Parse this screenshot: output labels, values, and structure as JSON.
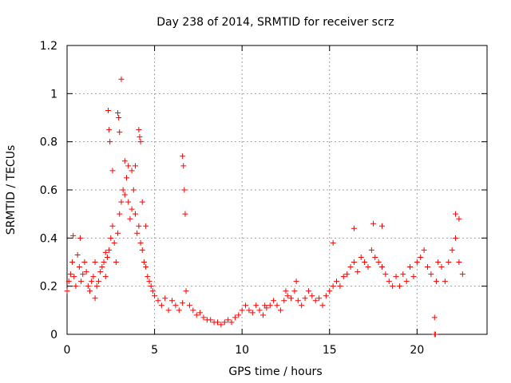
{
  "chart_data": {
    "type": "scatter",
    "title": "Day 238 of 2014, SRMTID for receiver scrz",
    "xlabel": "GPS time / hours",
    "ylabel": "SRMTID / TECUs",
    "xlim": [
      0,
      24
    ],
    "ylim": [
      0,
      1.2
    ],
    "x_ticks": [
      0,
      5,
      10,
      15,
      20
    ],
    "x_tick_labels": [
      "0",
      "5",
      "10",
      "15",
      "20"
    ],
    "y_ticks": [
      0,
      0.2,
      0.4,
      0.6,
      0.8,
      1.0,
      1.2
    ],
    "y_tick_labels": [
      "0",
      "0.2",
      "0.4",
      "0.6",
      "0.8",
      "1",
      "1.2"
    ],
    "grid": true,
    "marker": "plus",
    "series": [
      {
        "name": "SRMTID",
        "color": "#ff0000",
        "x": [
          0.0,
          0.1,
          0.2,
          0.3,
          0.4,
          0.5,
          0.6,
          0.7,
          0.8,
          0.9,
          1.0,
          1.1,
          1.2,
          1.3,
          1.4,
          1.5,
          1.6,
          1.7,
          1.8,
          1.9,
          2.0,
          2.1,
          2.2,
          2.3,
          2.4,
          2.5,
          2.6,
          2.7,
          2.8,
          2.9,
          3.0,
          3.1,
          3.2,
          3.3,
          3.4,
          3.5,
          3.6,
          3.7,
          3.8,
          3.9,
          4.0,
          4.1,
          4.2,
          4.3,
          4.4,
          4.5,
          4.6,
          4.7,
          4.8,
          4.9,
          5.0,
          5.2,
          5.4,
          5.6,
          5.8,
          6.0,
          6.2,
          6.4,
          6.6,
          6.8,
          7.0,
          7.2,
          7.4,
          7.6,
          7.8,
          8.0,
          8.2,
          8.4,
          8.6,
          8.8,
          9.0,
          9.2,
          9.4,
          9.6,
          9.8,
          10.0,
          10.2,
          10.4,
          10.6,
          10.8,
          11.0,
          11.2,
          11.4,
          11.6,
          11.8,
          12.0,
          12.2,
          12.4,
          12.6,
          12.8,
          13.0,
          13.2,
          13.4,
          13.6,
          13.8,
          14.0,
          14.2,
          14.4,
          14.6,
          14.8,
          15.0,
          15.2,
          15.4,
          15.6,
          15.8,
          16.0,
          16.2,
          16.4,
          16.6,
          16.8,
          17.0,
          17.2,
          17.4,
          17.6,
          17.8,
          18.0,
          18.2,
          18.4,
          18.6,
          18.8,
          19.0,
          19.2,
          19.4,
          19.6,
          19.8,
          20.0,
          20.2,
          20.4,
          20.6,
          20.8,
          21.0,
          21.2,
          21.4,
          21.6,
          21.8,
          22.0,
          22.2,
          22.4,
          22.6,
          2.35,
          2.4,
          2.45,
          2.9,
          2.95,
          3.0,
          4.1,
          4.15,
          4.2,
          6.6,
          6.65,
          6.7,
          6.75,
          2.6,
          3.1,
          3.3,
          3.5,
          3.7,
          3.9,
          4.3,
          4.5,
          0.35,
          0.75,
          1.6,
          2.2,
          21.0,
          21.05,
          21.1,
          22.2,
          22.4,
          18.0,
          17.5,
          16.4,
          15.2,
          13.1,
          12.5,
          11.3
        ],
        "y": [
          0.18,
          0.22,
          0.25,
          0.3,
          0.24,
          0.2,
          0.33,
          0.28,
          0.22,
          0.25,
          0.3,
          0.26,
          0.2,
          0.18,
          0.22,
          0.24,
          0.15,
          0.2,
          0.22,
          0.26,
          0.28,
          0.3,
          0.24,
          0.32,
          0.35,
          0.4,
          0.45,
          0.38,
          0.3,
          0.42,
          0.5,
          0.55,
          0.6,
          0.58,
          0.65,
          0.55,
          0.48,
          0.52,
          0.6,
          0.5,
          0.42,
          0.45,
          0.38,
          0.35,
          0.3,
          0.28,
          0.24,
          0.22,
          0.2,
          0.18,
          0.16,
          0.14,
          0.12,
          0.15,
          0.1,
          0.14,
          0.12,
          0.1,
          0.13,
          0.18,
          0.12,
          0.1,
          0.08,
          0.09,
          0.07,
          0.06,
          0.06,
          0.05,
          0.05,
          0.04,
          0.05,
          0.06,
          0.05,
          0.07,
          0.08,
          0.1,
          0.12,
          0.1,
          0.09,
          0.12,
          0.1,
          0.08,
          0.11,
          0.12,
          0.14,
          0.12,
          0.1,
          0.14,
          0.16,
          0.15,
          0.18,
          0.14,
          0.12,
          0.15,
          0.18,
          0.16,
          0.14,
          0.15,
          0.12,
          0.16,
          0.18,
          0.2,
          0.22,
          0.2,
          0.24,
          0.25,
          0.28,
          0.3,
          0.26,
          0.32,
          0.3,
          0.28,
          0.35,
          0.32,
          0.3,
          0.28,
          0.25,
          0.22,
          0.2,
          0.24,
          0.2,
          0.25,
          0.22,
          0.28,
          0.24,
          0.3,
          0.32,
          0.35,
          0.28,
          0.25,
          0.0,
          0.3,
          0.28,
          0.22,
          0.3,
          0.35,
          0.4,
          0.3,
          0.25,
          0.93,
          0.85,
          0.8,
          0.92,
          0.9,
          0.84,
          0.85,
          0.82,
          0.8,
          0.74,
          0.7,
          0.6,
          0.5,
          0.68,
          1.06,
          0.72,
          0.7,
          0.68,
          0.7,
          0.55,
          0.45,
          0.41,
          0.4,
          0.3,
          0.34,
          0.07,
          0.0,
          0.22,
          0.5,
          0.48,
          0.45,
          0.46,
          0.44,
          0.38,
          0.22,
          0.18,
          0.12
        ]
      }
    ]
  }
}
